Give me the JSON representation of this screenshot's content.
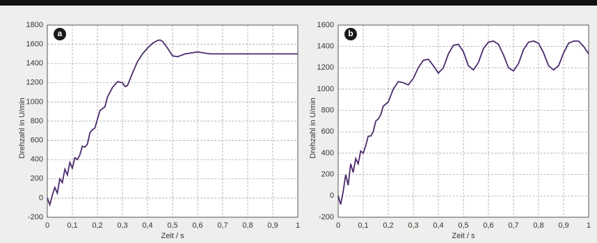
{
  "chart_data": [
    {
      "type": "line",
      "panel_label": "a",
      "xlabel": "Zeit / s",
      "ylabel": "Drehzahl in U/min",
      "color": "#4a2a6c",
      "grid": true,
      "xlim": [
        0,
        1
      ],
      "xticks": [
        0,
        {
          "value": 0.1,
          "label": "0,1"
        },
        {
          "value": 0.2,
          "label": "0,2"
        },
        {
          "value": 0.3,
          "label": "0,3"
        },
        {
          "value": 0.4,
          "label": "0,4"
        },
        {
          "value": 0.5,
          "label": "0,5"
        },
        {
          "value": 0.6,
          "label": "0,6"
        },
        {
          "value": 0.7,
          "label": "0,7"
        },
        {
          "value": 0.8,
          "label": "0,8"
        },
        {
          "value": 0.9,
          "label": "0,9"
        },
        1
      ],
      "ylim": [
        -200,
        1800
      ],
      "yticks": [
        -200,
        0,
        200,
        400,
        600,
        800,
        1000,
        1200,
        1400,
        1600,
        1800
      ],
      "x": [
        0,
        0.01,
        0.02,
        0.03,
        0.04,
        0.05,
        0.06,
        0.07,
        0.08,
        0.09,
        0.1,
        0.11,
        0.12,
        0.13,
        0.14,
        0.15,
        0.16,
        0.17,
        0.18,
        0.19,
        0.2,
        0.21,
        0.22,
        0.23,
        0.24,
        0.26,
        0.28,
        0.3,
        0.31,
        0.32,
        0.34,
        0.36,
        0.38,
        0.4,
        0.42,
        0.44,
        0.45,
        0.46,
        0.48,
        0.5,
        0.52,
        0.55,
        0.6,
        0.65,
        0.7,
        0.8,
        0.9,
        1.0
      ],
      "values": [
        0,
        -70,
        30,
        110,
        50,
        200,
        160,
        300,
        240,
        370,
        310,
        420,
        400,
        450,
        540,
        530,
        560,
        680,
        710,
        730,
        820,
        910,
        930,
        950,
        1050,
        1150,
        1210,
        1200,
        1160,
        1170,
        1300,
        1420,
        1500,
        1560,
        1610,
        1640,
        1645,
        1630,
        1560,
        1480,
        1470,
        1500,
        1520,
        1500,
        1500,
        1500,
        1500,
        1500
      ]
    },
    {
      "type": "line",
      "panel_label": "b",
      "xlabel": "Zeit / s",
      "ylabel": "Drehzahl in U/min",
      "color": "#4a2a6c",
      "grid": true,
      "xlim": [
        0,
        1
      ],
      "xticks": [
        0,
        {
          "value": 0.1,
          "label": "0,1"
        },
        {
          "value": 0.2,
          "label": "0,2"
        },
        {
          "value": 0.3,
          "label": "0,3"
        },
        {
          "value": 0.4,
          "label": "0,4"
        },
        {
          "value": 0.5,
          "label": "0,5"
        },
        {
          "value": 0.6,
          "label": "0,6"
        },
        {
          "value": 0.7,
          "label": "0,7"
        },
        {
          "value": 0.8,
          "label": "0,8"
        },
        {
          "value": 0.9,
          "label": "0,9"
        },
        1
      ],
      "ylim": [
        -200,
        1600
      ],
      "yticks": [
        -200,
        0,
        200,
        400,
        600,
        800,
        1000,
        1200,
        1400,
        1600
      ],
      "x": [
        0,
        0.01,
        0.02,
        0.03,
        0.04,
        0.05,
        0.06,
        0.07,
        0.08,
        0.09,
        0.1,
        0.11,
        0.12,
        0.13,
        0.14,
        0.15,
        0.16,
        0.17,
        0.18,
        0.19,
        0.2,
        0.22,
        0.24,
        0.26,
        0.28,
        0.3,
        0.32,
        0.34,
        0.36,
        0.38,
        0.4,
        0.42,
        0.44,
        0.46,
        0.48,
        0.5,
        0.52,
        0.54,
        0.56,
        0.58,
        0.6,
        0.62,
        0.64,
        0.66,
        0.68,
        0.7,
        0.72,
        0.74,
        0.76,
        0.78,
        0.8,
        0.82,
        0.84,
        0.86,
        0.88,
        0.9,
        0.92,
        0.94,
        0.96,
        0.98,
        1.0
      ],
      "values": [
        0,
        -80,
        40,
        200,
        100,
        300,
        220,
        350,
        300,
        420,
        400,
        470,
        560,
        560,
        600,
        700,
        720,
        760,
        840,
        860,
        880,
        1000,
        1070,
        1060,
        1040,
        1100,
        1200,
        1270,
        1280,
        1220,
        1150,
        1200,
        1330,
        1410,
        1420,
        1350,
        1220,
        1180,
        1250,
        1380,
        1440,
        1450,
        1420,
        1320,
        1200,
        1170,
        1240,
        1370,
        1440,
        1450,
        1430,
        1340,
        1220,
        1180,
        1220,
        1340,
        1430,
        1450,
        1450,
        1400,
        1330
      ]
    }
  ]
}
